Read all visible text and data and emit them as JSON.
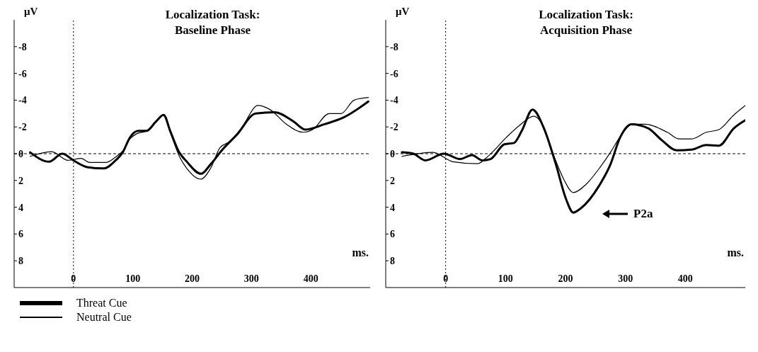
{
  "chart_data": [
    {
      "type": "line",
      "title": "Localization Task:\nBaseline Phase",
      "xlabel": "ms.",
      "ylabel": "μV",
      "xlim": [
        -100,
        500
      ],
      "ylim": [
        10,
        -10
      ],
      "xticks": [
        0,
        100,
        200,
        300,
        400
      ],
      "yticks": [
        -8,
        -6,
        -4,
        -2,
        0,
        2,
        4,
        6,
        8
      ],
      "legend": "bottom left",
      "marker": "none",
      "line_style": "solid",
      "ref_lines": [
        {
          "axis": "y",
          "value": 0,
          "line_style": "dashed"
        },
        {
          "axis": "x",
          "value": 0,
          "line_style": "dotted"
        }
      ],
      "series": [
        {
          "name": "Threat Cue",
          "color": "#000000",
          "x": [
            -73,
            -41,
            -19,
            0,
            23,
            51,
            71,
            83,
            95,
            109,
            123,
            139,
            152,
            163,
            177,
            191,
            215,
            231,
            251,
            275,
            307,
            339,
            371,
            391,
            423,
            455,
            497
          ],
          "values": [
            -0.1,
            0.6,
            0,
            0.5,
            1.0,
            1.1,
            0.5,
            -0.1,
            -1.2,
            -1.7,
            -1.7,
            -2.4,
            -2.9,
            -1.7,
            -0.2,
            0.6,
            1.5,
            0.8,
            -0.3,
            -1.4,
            -3.0,
            -3.1,
            -2.4,
            -1.8,
            -2.2,
            -2.7,
            -3.9
          ]
        },
        {
          "name": "Neutral Cue",
          "color": "#000000",
          "x": [
            -73,
            -37,
            -9,
            13,
            27,
            55,
            71,
            83,
            95,
            107,
            123,
            139,
            151,
            163,
            179,
            191,
            215,
            231,
            247,
            263,
            283,
            311,
            331,
            359,
            387,
            403,
            431,
            451,
            473,
            497
          ],
          "values": [
            0.2,
            -0.15,
            0.5,
            0.35,
            0.65,
            0.65,
            0.25,
            -0.2,
            -1.1,
            -1.5,
            -1.7,
            -2.4,
            -2.9,
            -1.6,
            0.25,
            1.1,
            1.9,
            1.1,
            -0.45,
            -0.9,
            -1.9,
            -3.6,
            -3.3,
            -2.2,
            -1.6,
            -1.8,
            -3.0,
            -3.0,
            -4.0,
            -4.2
          ]
        }
      ]
    },
    {
      "type": "line",
      "title": "Localization Task:\nAcquisition Phase",
      "xlabel": "ms.",
      "ylabel": "μV",
      "xlim": [
        -100,
        500
      ],
      "ylim": [
        10,
        -10
      ],
      "xticks": [
        0,
        100,
        200,
        300,
        400
      ],
      "yticks": [
        -8,
        -6,
        -4,
        -2,
        0,
        2,
        4,
        6,
        8
      ],
      "marker": "none",
      "line_style": "solid",
      "ref_lines": [
        {
          "axis": "y",
          "value": 0,
          "line_style": "dashed"
        },
        {
          "axis": "x",
          "value": 0,
          "line_style": "dotted"
        }
      ],
      "annotations": [
        "P2a"
      ],
      "series": [
        {
          "color": "#000000",
          "x": [
            -73,
            -54,
            -34,
            -3,
            24,
            44,
            61,
            75,
            98,
            114,
            127,
            145,
            164,
            184,
            201,
            213,
            225,
            256,
            275,
            291,
            310,
            338,
            361,
            386,
            410,
            435,
            456,
            481,
            500
          ],
          "values": [
            -0.1,
            0,
            0.5,
            0,
            0.4,
            0.1,
            0.5,
            0.4,
            -0.7,
            -0.8,
            -1.7,
            -3.3,
            -1.9,
            0.8,
            3.4,
            4.4,
            4.1,
            2.4,
            0.8,
            -1.2,
            -2.2,
            -1.9,
            -1.0,
            -0.25,
            -0.3,
            -0.65,
            -0.6,
            -1.9,
            -2.5
          ]
        },
        {
          "color": "#000000",
          "x": [
            -73,
            -21,
            12,
            53,
            73,
            102,
            123,
            147,
            160,
            180,
            197,
            213,
            234,
            258,
            275,
            291,
            312,
            333,
            370,
            390,
            410,
            435,
            456,
            481,
            500
          ],
          "values": [
            0.2,
            -0.1,
            0.6,
            0.75,
            0.1,
            -1.25,
            -2.1,
            -2.8,
            -2.3,
            0.1,
            1.9,
            2.9,
            2.3,
            1.0,
            -0.1,
            -1.25,
            -2.2,
            -2.2,
            -1.6,
            -1.1,
            -1.1,
            -1.6,
            -1.8,
            -2.9,
            -3.6
          ]
        }
      ]
    }
  ]
}
